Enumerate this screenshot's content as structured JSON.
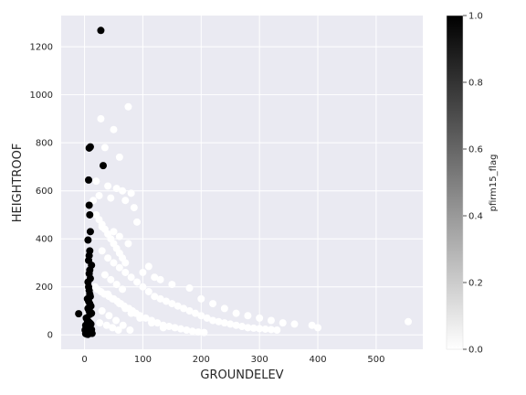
{
  "chart_data": {
    "type": "scatter",
    "title": "",
    "xlabel": "GROUNDELEV",
    "ylabel": "HEIGHTROOF",
    "xlim": [
      -40,
      580
    ],
    "ylim": [
      -60,
      1330
    ],
    "xticks": [
      0,
      100,
      200,
      300,
      400,
      500
    ],
    "yticks": [
      0,
      200,
      400,
      600,
      800,
      1000,
      1200
    ],
    "grid": true,
    "colorbar": {
      "label": "pfirm15_flag",
      "range": [
        0,
        1
      ],
      "ticks": [
        "0.0",
        "0.2",
        "0.4",
        "0.6",
        "0.8",
        "1.0"
      ],
      "colormap": "greys",
      "low_color": "#ffffff",
      "high_color": "#000000"
    },
    "flag1_points": {
      "x": [
        28,
        8,
        10,
        7,
        32,
        8,
        9,
        10,
        6,
        9,
        8,
        7,
        12,
        9,
        8,
        10,
        6,
        7,
        8,
        9,
        10,
        5,
        7,
        9,
        11,
        6,
        8,
        10,
        12,
        9,
        -10,
        3,
        5,
        7,
        9,
        11,
        2,
        4,
        6,
        8,
        10,
        12,
        1,
        3,
        5,
        7,
        9,
        11,
        13,
        2,
        4,
        6
      ],
      "y": [
        1268,
        778,
        783,
        645,
        705,
        540,
        500,
        430,
        395,
        350,
        330,
        310,
        290,
        270,
        255,
        235,
        220,
        200,
        185,
        170,
        160,
        150,
        140,
        130,
        120,
        110,
        100,
        95,
        90,
        85,
        88,
        70,
        60,
        55,
        50,
        45,
        40,
        35,
        30,
        28,
        25,
        22,
        20,
        18,
        15,
        12,
        10,
        8,
        6,
        5,
        3,
        2
      ]
    },
    "flag0_points": {
      "x": [
        28,
        50,
        75,
        35,
        60,
        80,
        20,
        40,
        55,
        65,
        85,
        15,
        25,
        45,
        70,
        90,
        30,
        50,
        60,
        75,
        100,
        110,
        120,
        130,
        150,
        180,
        200,
        220,
        240,
        260,
        280,
        300,
        320,
        340,
        360,
        390,
        400,
        555,
        30,
        40,
        50,
        60,
        70,
        80,
        90,
        100,
        110,
        120,
        130,
        140,
        150,
        160,
        170,
        180,
        190,
        200,
        210,
        220,
        230,
        240,
        250,
        260,
        270,
        280,
        290,
        300,
        310,
        320,
        330,
        20,
        25,
        30,
        35,
        40,
        45,
        50,
        55,
        60,
        65,
        70,
        18,
        22,
        28,
        34,
        42,
        48,
        56,
        62,
        68,
        76,
        82,
        88,
        95,
        105,
        115,
        125,
        135,
        145,
        155,
        165,
        175,
        185,
        195,
        205,
        35,
        45,
        55,
        65,
        40,
        50,
        60,
        70,
        80,
        95,
        115,
        135,
        30,
        42,
        54,
        66,
        78,
        26,
        38,
        48,
        58
      ],
      "y": [
        900,
        855,
        950,
        780,
        740,
        590,
        640,
        620,
        610,
        600,
        530,
        560,
        580,
        570,
        560,
        470,
        450,
        430,
        410,
        380,
        260,
        285,
        240,
        230,
        210,
        195,
        150,
        130,
        110,
        90,
        80,
        70,
        60,
        50,
        45,
        40,
        30,
        55,
        350,
        320,
        300,
        280,
        260,
        240,
        220,
        200,
        180,
        160,
        150,
        140,
        130,
        120,
        110,
        100,
        90,
        80,
        70,
        60,
        55,
        50,
        45,
        40,
        35,
        30,
        28,
        26,
        24,
        22,
        20,
        500,
        480,
        460,
        440,
        420,
        400,
        380,
        360,
        340,
        320,
        300,
        200,
        190,
        180,
        170,
        160,
        150,
        140,
        130,
        120,
        110,
        100,
        90,
        80,
        70,
        60,
        50,
        40,
        35,
        30,
        25,
        20,
        15,
        12,
        10,
        250,
        230,
        210,
        190,
        170,
        150,
        130,
        110,
        90,
        70,
        50,
        30,
        100,
        80,
        60,
        40,
        20,
        50,
        40,
        30,
        20
      ]
    }
  }
}
